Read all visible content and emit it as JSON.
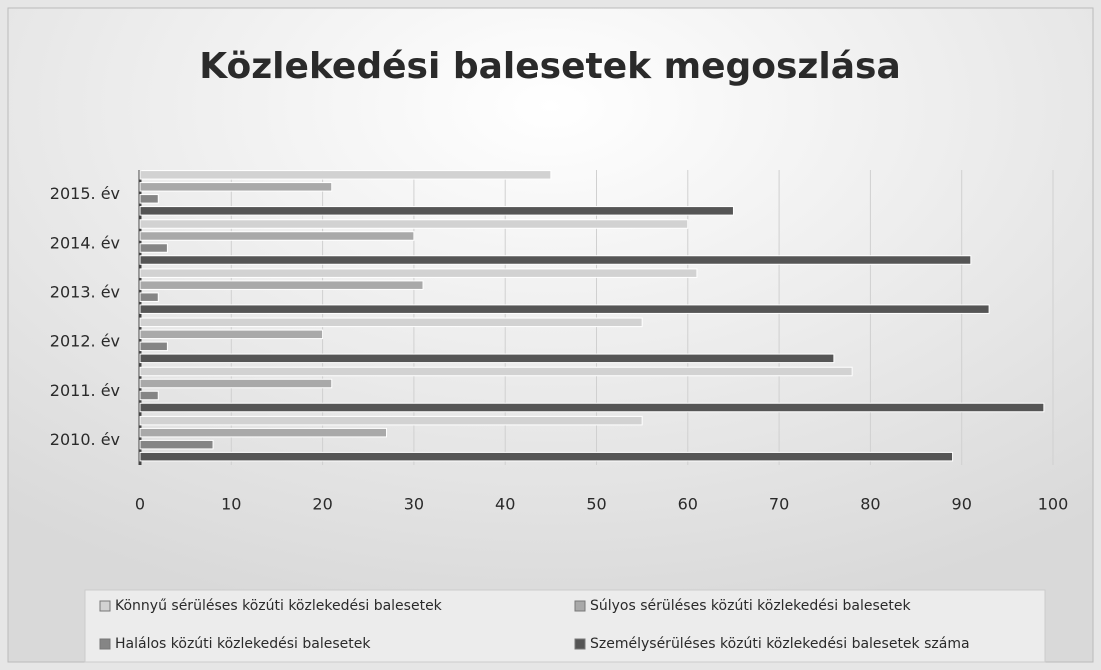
{
  "chart_data": {
    "type": "bar",
    "orientation": "horizontal",
    "title": "Közlekedési balesetek megoszlása",
    "categories": [
      "2010. év",
      "2011. év",
      "2012. év",
      "2013. év",
      "2014. év",
      "2015. év"
    ],
    "series": [
      {
        "name": "Könnyű sérüléses közúti közlekedési balesetek",
        "color": "#d2d2d2",
        "values": [
          55,
          78,
          55,
          61,
          60,
          45
        ]
      },
      {
        "name": "Súlyos sérüléses közúti közlekedési balesetek",
        "color": "#a9a9a9",
        "values": [
          27,
          21,
          20,
          31,
          30,
          21
        ]
      },
      {
        "name": "Halálos közúti közlekedési balesetek",
        "color": "#858585",
        "values": [
          8,
          2,
          3,
          2,
          3,
          2
        ]
      },
      {
        "name": "Személysérüléses közúti közlekedési balesetek száma",
        "color": "#555555",
        "values": [
          89,
          99,
          76,
          93,
          91,
          65
        ]
      }
    ],
    "xlim": [
      0,
      100
    ],
    "xticks": [
      0,
      10,
      20,
      30,
      40,
      50,
      60,
      70,
      80,
      90,
      100
    ],
    "grid": true,
    "legend": "bottom"
  }
}
